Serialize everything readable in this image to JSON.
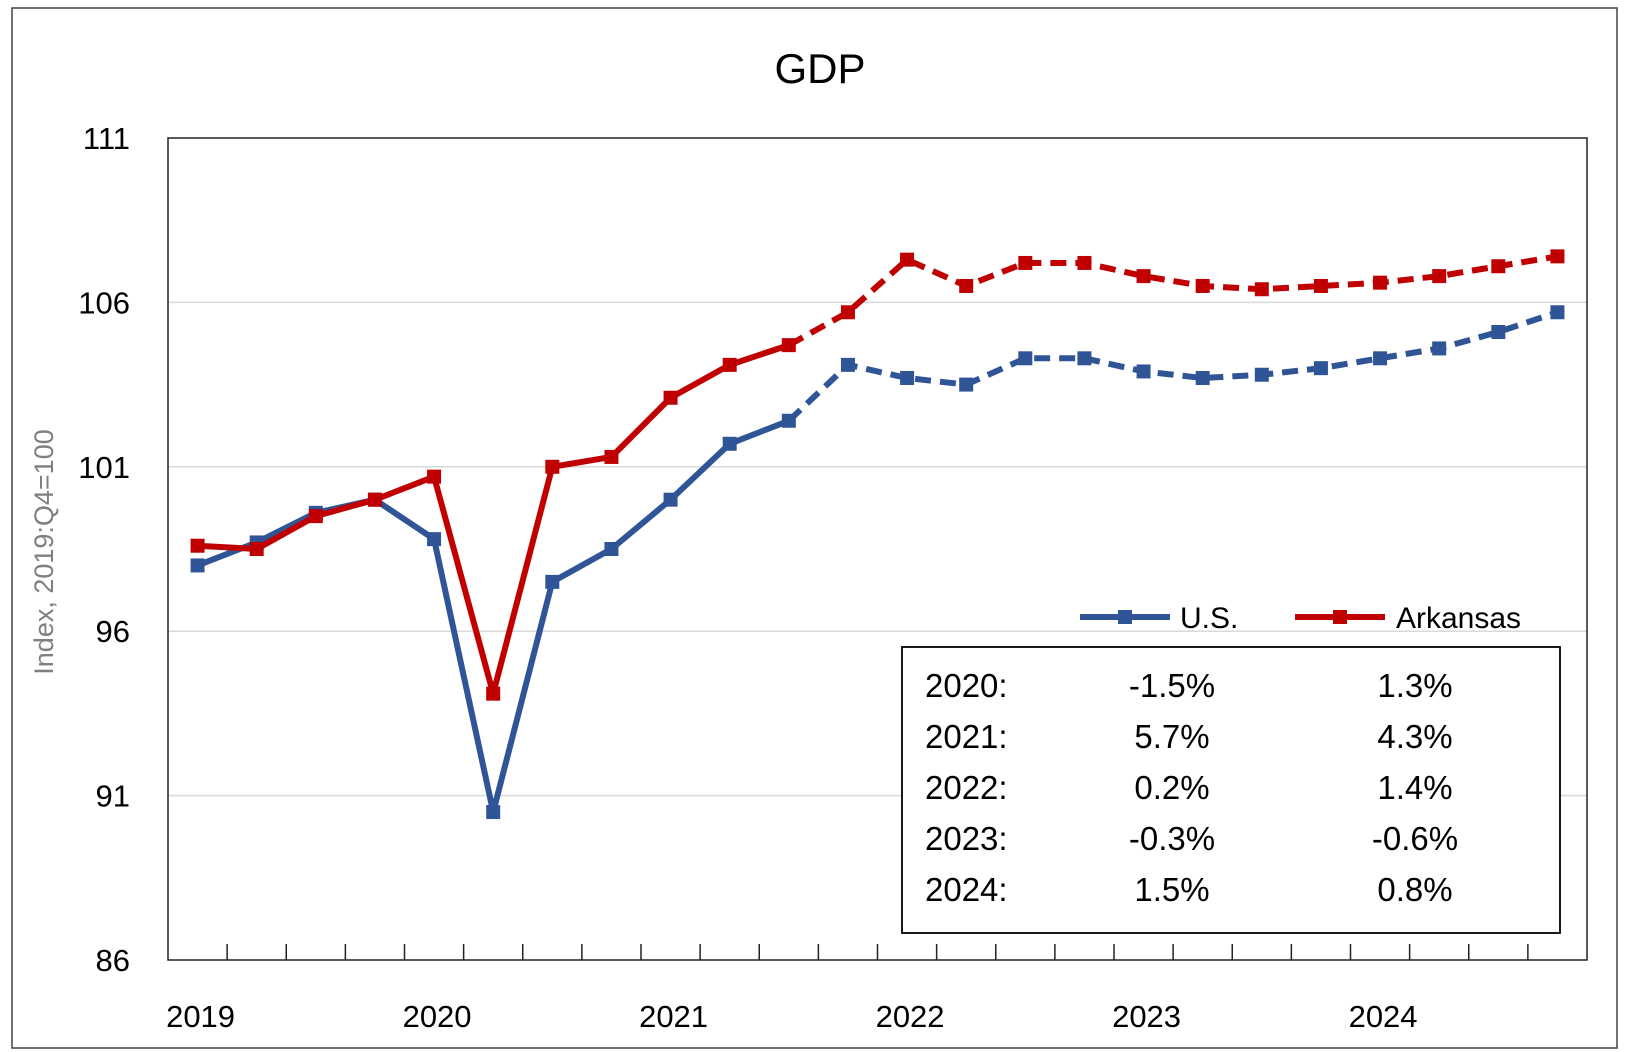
{
  "chart_data": {
    "type": "line",
    "title": "GDP",
    "xlabel": "",
    "ylabel": "Index, 2019:Q4=100",
    "ylim": [
      86,
      111
    ],
    "y_ticks": [
      86,
      91,
      96,
      101,
      106,
      111
    ],
    "x_tick_labels": [
      "2019",
      "2020",
      "2021",
      "2022",
      "2023",
      "2024"
    ],
    "grid": "horizontal",
    "legend_position": "lower-right",
    "x": [
      "2019:Q1",
      "2019:Q2",
      "2019:Q3",
      "2019:Q4",
      "2020:Q1",
      "2020:Q2",
      "2020:Q3",
      "2020:Q4",
      "2021:Q1",
      "2021:Q2",
      "2021:Q3",
      "2021:Q4",
      "2022:Q1",
      "2022:Q2",
      "2022:Q3",
      "2022:Q4",
      "2023:Q1",
      "2023:Q2",
      "2023:Q3",
      "2023:Q4",
      "2024:Q1",
      "2024:Q2",
      "2024:Q3",
      "2024:Q4"
    ],
    "forecast_start_index": 10,
    "series": [
      {
        "name": "U.S.",
        "color": "#2f5597",
        "values": [
          98.0,
          98.7,
          99.6,
          100.0,
          98.8,
          90.5,
          97.5,
          98.5,
          100.0,
          101.7,
          102.4,
          104.1,
          103.7,
          103.5,
          104.3,
          104.3,
          103.9,
          103.7,
          103.8,
          104.0,
          104.3,
          104.6,
          105.1,
          105.7
        ]
      },
      {
        "name": "Arkansas",
        "color": "#c00000",
        "values": [
          98.6,
          98.5,
          99.5,
          100.0,
          100.7,
          94.1,
          101.0,
          101.3,
          103.1,
          104.1,
          104.7,
          105.7,
          107.3,
          106.5,
          107.2,
          107.2,
          106.8,
          106.5,
          106.4,
          106.5,
          106.6,
          106.8,
          107.1,
          107.4
        ]
      }
    ],
    "annual_growth_table": {
      "rows": [
        {
          "year": "2020:",
          "us": "-1.5%",
          "arkansas": "1.3%"
        },
        {
          "year": "2021:",
          "us": "5.7%",
          "arkansas": "4.3%"
        },
        {
          "year": "2022:",
          "us": "0.2%",
          "arkansas": "1.4%"
        },
        {
          "year": "2023:",
          "us": "-0.3%",
          "arkansas": "-0.6%"
        },
        {
          "year": "2024:",
          "us": "1.5%",
          "arkansas": "0.8%"
        }
      ]
    }
  }
}
